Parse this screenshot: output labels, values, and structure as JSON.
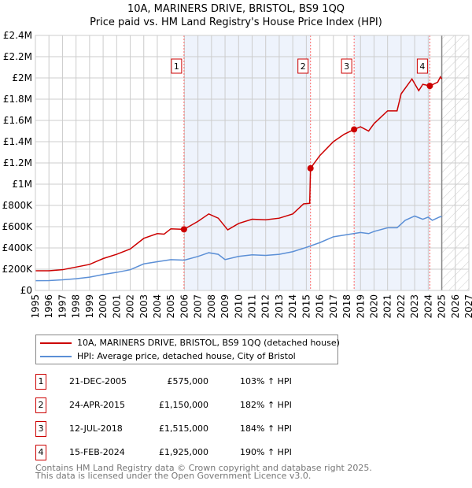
{
  "chart_data": {
    "type": "line",
    "title": "10A, MARINERS DRIVE, BRISTOL, BS9 1QQ",
    "subtitle": "Price paid vs. HM Land Registry's House Price Index (HPI)",
    "xlim": [
      1995,
      2027
    ],
    "ylim": [
      0,
      2400000
    ],
    "x_ticks": [
      "1995",
      "1996",
      "1997",
      "1998",
      "1999",
      "2000",
      "2001",
      "2002",
      "2003",
      "2004",
      "2005",
      "2006",
      "2007",
      "2008",
      "2009",
      "2010",
      "2011",
      "2012",
      "2013",
      "2014",
      "2015",
      "2016",
      "2017",
      "2018",
      "2019",
      "2020",
      "2021",
      "2022",
      "2023",
      "2024",
      "2025",
      "2026",
      "2027"
    ],
    "y_ticks": [
      {
        "v": 0,
        "l": "£0"
      },
      {
        "v": 200000,
        "l": "£200K"
      },
      {
        "v": 400000,
        "l": "£400K"
      },
      {
        "v": 600000,
        "l": "£600K"
      },
      {
        "v": 800000,
        "l": "£800K"
      },
      {
        "v": 1000000,
        "l": "£1M"
      },
      {
        "v": 1200000,
        "l": "£1.2M"
      },
      {
        "v": 1400000,
        "l": "£1.4M"
      },
      {
        "v": 1600000,
        "l": "£1.6M"
      },
      {
        "v": 1800000,
        "l": "£1.8M"
      },
      {
        "v": 2000000,
        "l": "£2M"
      },
      {
        "v": 2200000,
        "l": "£2.2M"
      },
      {
        "v": 2400000,
        "l": "£2.4M"
      }
    ],
    "shaded": [
      [
        2005.97,
        2015.31
      ],
      [
        2018.53,
        2024.12
      ]
    ],
    "forecast_from": 2025.0,
    "series": [
      {
        "name": "10A, MARINERS DRIVE, BRISTOL, BS9 1QQ (detached house)",
        "color": "#cc0000",
        "x": [
          1995,
          1996,
          1997,
          1998,
          1999,
          2000,
          2001,
          2002,
          2003,
          2004,
          2004.5,
          2005,
          2005.97,
          2007,
          2007.8,
          2008.5,
          2009.2,
          2010,
          2011,
          2012,
          2013,
          2014,
          2014.8,
          2015.25,
          2015.31,
          2016,
          2017,
          2017.8,
          2018.53,
          2019,
          2019.6,
          2020,
          2021,
          2021.7,
          2022,
          2022.8,
          2023.3,
          2023.6,
          2024.12,
          2024.7,
          2024.9,
          2025.0
        ],
        "y": [
          185,
          185,
          195,
          220,
          245,
          300,
          340,
          390,
          490,
          535,
          530,
          580,
          575,
          650,
          720,
          680,
          570,
          630,
          670,
          665,
          680,
          720,
          815,
          820,
          1150,
          1270,
          1400,
          1470,
          1515,
          1540,
          1500,
          1570,
          1690,
          1690,
          1850,
          1990,
          1880,
          1940,
          1925,
          1960,
          2010,
          1990
        ]
      },
      {
        "name": "HPI: Average price, detached house, City of Bristol",
        "color": "#5b8fd6",
        "x": [
          1995,
          1996,
          1997,
          1998,
          1999,
          2000,
          2001,
          2002,
          2003,
          2004,
          2005,
          2006,
          2007,
          2007.8,
          2008.5,
          2009,
          2010,
          2011,
          2012,
          2013,
          2014,
          2015,
          2016,
          2017,
          2018,
          2019,
          2019.6,
          2020,
          2021,
          2021.7,
          2022.3,
          2023,
          2023.6,
          2024,
          2024.3,
          2024.9,
          2025.0
        ],
        "y": [
          92,
          93,
          100,
          110,
          125,
          150,
          170,
          195,
          250,
          270,
          290,
          285,
          320,
          355,
          340,
          290,
          320,
          335,
          330,
          340,
          365,
          405,
          450,
          505,
          525,
          545,
          535,
          555,
          590,
          590,
          660,
          700,
          670,
          690,
          660,
          695,
          690
        ]
      }
    ],
    "sales": [
      {
        "n": "1",
        "x": 2005.97,
        "y": 575,
        "date": "21-DEC-2005",
        "price": "£575,000",
        "hpi": "103% ↑ HPI"
      },
      {
        "n": "2",
        "x": 2015.31,
        "y": 1150,
        "date": "24-APR-2015",
        "price": "£1,150,000",
        "hpi": "182% ↑ HPI"
      },
      {
        "n": "3",
        "x": 2018.53,
        "y": 1515,
        "date": "12-JUL-2018",
        "price": "£1,515,000",
        "hpi": "184% ↑ HPI"
      },
      {
        "n": "4",
        "x": 2024.12,
        "y": 1925,
        "date": "15-FEB-2024",
        "price": "£1,925,000",
        "hpi": "190% ↑ HPI"
      }
    ],
    "y_unit": "thousands GBP"
  },
  "footer": [
    "Contains HM Land Registry data © Crown copyright and database right 2025.",
    "This data is licensed under the Open Government Licence v3.0."
  ]
}
